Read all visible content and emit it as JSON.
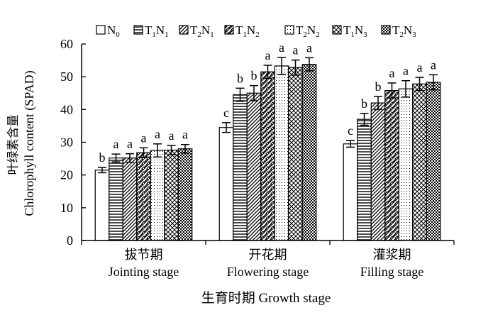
{
  "chart_data": {
    "type": "bar",
    "title": "",
    "xlabel": "生育时期 Growth stage",
    "ylabel_cn": "叶绿素含量",
    "ylabel_en": "Chlorophyll content (SPAD)",
    "ylim": [
      0,
      60
    ],
    "yticks": [
      0,
      10,
      20,
      30,
      40,
      50,
      60
    ],
    "grid": false,
    "legend_position": "top",
    "categories": [
      {
        "cn": "拔节期",
        "en": "Jointing stage"
      },
      {
        "cn": "开花期",
        "en": "Flowering stage"
      },
      {
        "cn": "灌浆期",
        "en": "Filling stage"
      }
    ],
    "series": [
      {
        "name": "N0",
        "label": "N",
        "sub1": "0",
        "sub2": "",
        "pattern": "blank",
        "values": [
          21.5,
          34.5,
          29.5
        ],
        "errors": [
          0.8,
          1.5,
          1.0
        ],
        "letters": [
          "b",
          "c",
          "c"
        ]
      },
      {
        "name": "T1N1",
        "label": "T",
        "sub1": "1",
        "mid": "N",
        "sub2": "1",
        "pattern": "hlines",
        "values": [
          25.2,
          44.5,
          37.0
        ],
        "errors": [
          1.2,
          2.0,
          1.8
        ],
        "letters": [
          "a",
          "b",
          "b"
        ]
      },
      {
        "name": "T2N1",
        "label": "T",
        "sub1": "2",
        "mid": "N",
        "sub2": "1",
        "pattern": "diag",
        "values": [
          25.2,
          45.0,
          42.0
        ],
        "errors": [
          1.3,
          2.3,
          2.0
        ],
        "letters": [
          "a",
          "b",
          "b"
        ]
      },
      {
        "name": "T1N2",
        "label": "T",
        "sub1": "1",
        "mid": "N",
        "sub2": "2",
        "pattern": "diagwide",
        "values": [
          26.8,
          51.5,
          45.8
        ],
        "errors": [
          1.5,
          2.0,
          2.3
        ],
        "letters": [
          "a",
          "a",
          "a"
        ]
      },
      {
        "name": "T2N2",
        "label": "T",
        "sub1": "2",
        "mid": "N",
        "sub2": "2",
        "pattern": "dots",
        "values": [
          27.5,
          53.3,
          46.3
        ],
        "errors": [
          2.0,
          2.6,
          2.5
        ],
        "letters": [
          "a",
          "a",
          "a"
        ]
      },
      {
        "name": "T1N3",
        "label": "T",
        "sub1": "1",
        "mid": "N",
        "sub2": "3",
        "pattern": "cross",
        "values": [
          27.6,
          52.8,
          47.8
        ],
        "errors": [
          1.4,
          2.3,
          2.0
        ],
        "letters": [
          "a",
          "a",
          "a"
        ]
      },
      {
        "name": "T2N3",
        "label": "T",
        "sub1": "2",
        "mid": "N",
        "sub2": "3",
        "pattern": "check",
        "values": [
          28.0,
          53.8,
          48.3
        ],
        "errors": [
          1.3,
          2.0,
          2.3
        ],
        "letters": [
          "a",
          "a",
          "a"
        ]
      }
    ]
  }
}
